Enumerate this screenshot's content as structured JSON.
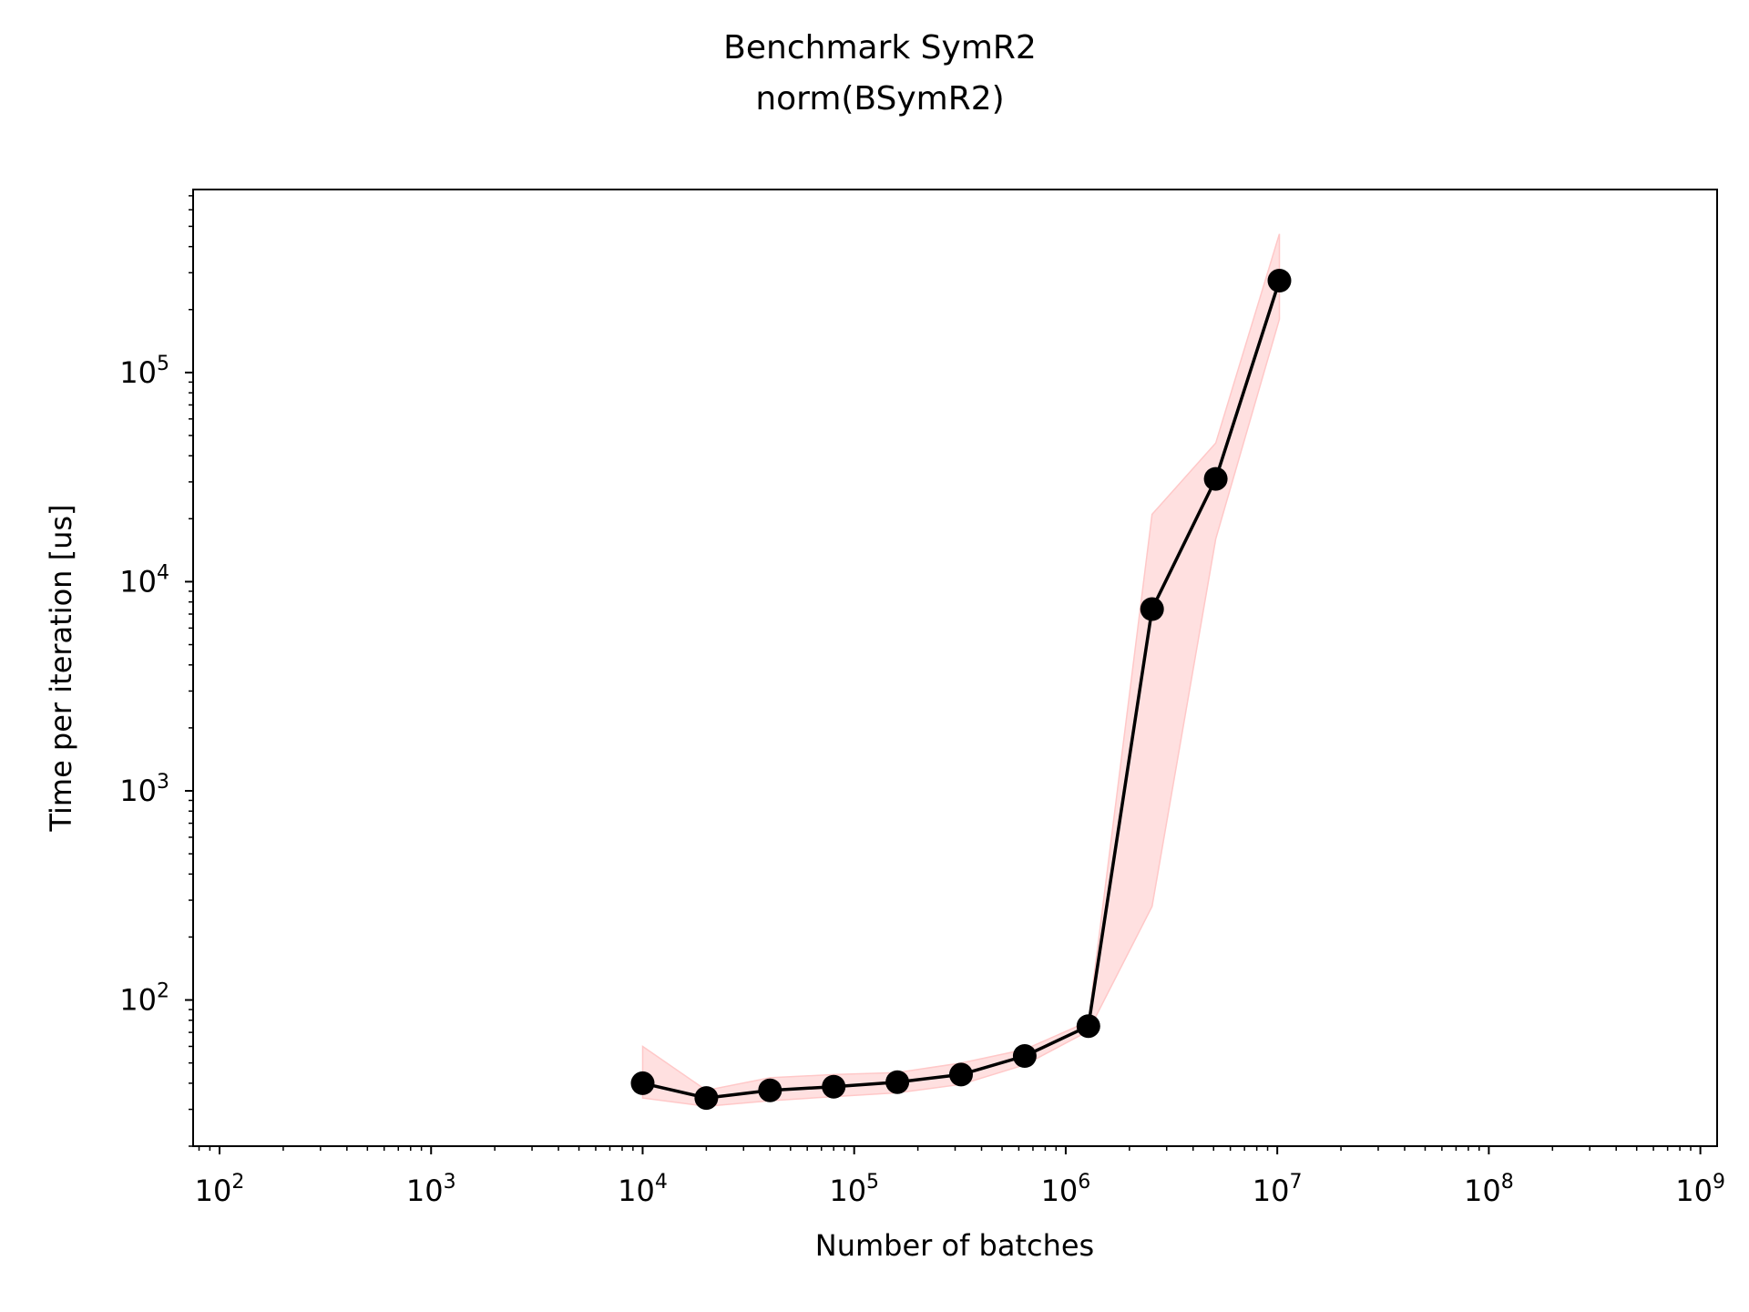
{
  "chart_data": {
    "type": "line",
    "title": "Benchmark SymR2",
    "subtitle": "norm(BSymR2)",
    "xlabel": "Number of batches",
    "ylabel": "Time per iteration [us]",
    "xscale": "log",
    "yscale": "log",
    "xlim": [
      75,
      1200000000
    ],
    "ylim": [
      20,
      750000
    ],
    "x_ticks": [
      {
        "value": 100,
        "base": "10",
        "exp": "2"
      },
      {
        "value": 1000,
        "base": "10",
        "exp": "3"
      },
      {
        "value": 10000,
        "base": "10",
        "exp": "4"
      },
      {
        "value": 100000,
        "base": "10",
        "exp": "5"
      },
      {
        "value": 1000000,
        "base": "10",
        "exp": "6"
      },
      {
        "value": 10000000,
        "base": "10",
        "exp": "7"
      },
      {
        "value": 100000000,
        "base": "10",
        "exp": "8"
      },
      {
        "value": 1000000000,
        "base": "10",
        "exp": "9"
      }
    ],
    "y_ticks": [
      {
        "value": 100,
        "base": "10",
        "exp": "2"
      },
      {
        "value": 1000,
        "base": "10",
        "exp": "3"
      },
      {
        "value": 10000,
        "base": "10",
        "exp": "4"
      },
      {
        "value": 100000,
        "base": "10",
        "exp": "5"
      }
    ],
    "grid": false,
    "legend": "none",
    "colors": {
      "line": "#000000",
      "marker": "#000000",
      "band_fill": "#ffe0e0",
      "band_edge": "#ffc8c8",
      "axes": "#000000",
      "background": "#ffffff"
    },
    "series": [
      {
        "x": [
          10000,
          20000,
          40000,
          80000,
          160000,
          320000,
          640000,
          1280000,
          2560000,
          5120000,
          10240000
        ],
        "y": [
          40,
          34,
          37,
          38.5,
          40.5,
          44,
          54,
          75,
          7400,
          31000,
          275000
        ],
        "y_lower": [
          34,
          31,
          33,
          34.5,
          36,
          39.5,
          49,
          71,
          280,
          16000,
          180000
        ],
        "y_upper": [
          60,
          37,
          42.5,
          44,
          45,
          50,
          58,
          79,
          21000,
          46000,
          460000
        ]
      }
    ]
  }
}
